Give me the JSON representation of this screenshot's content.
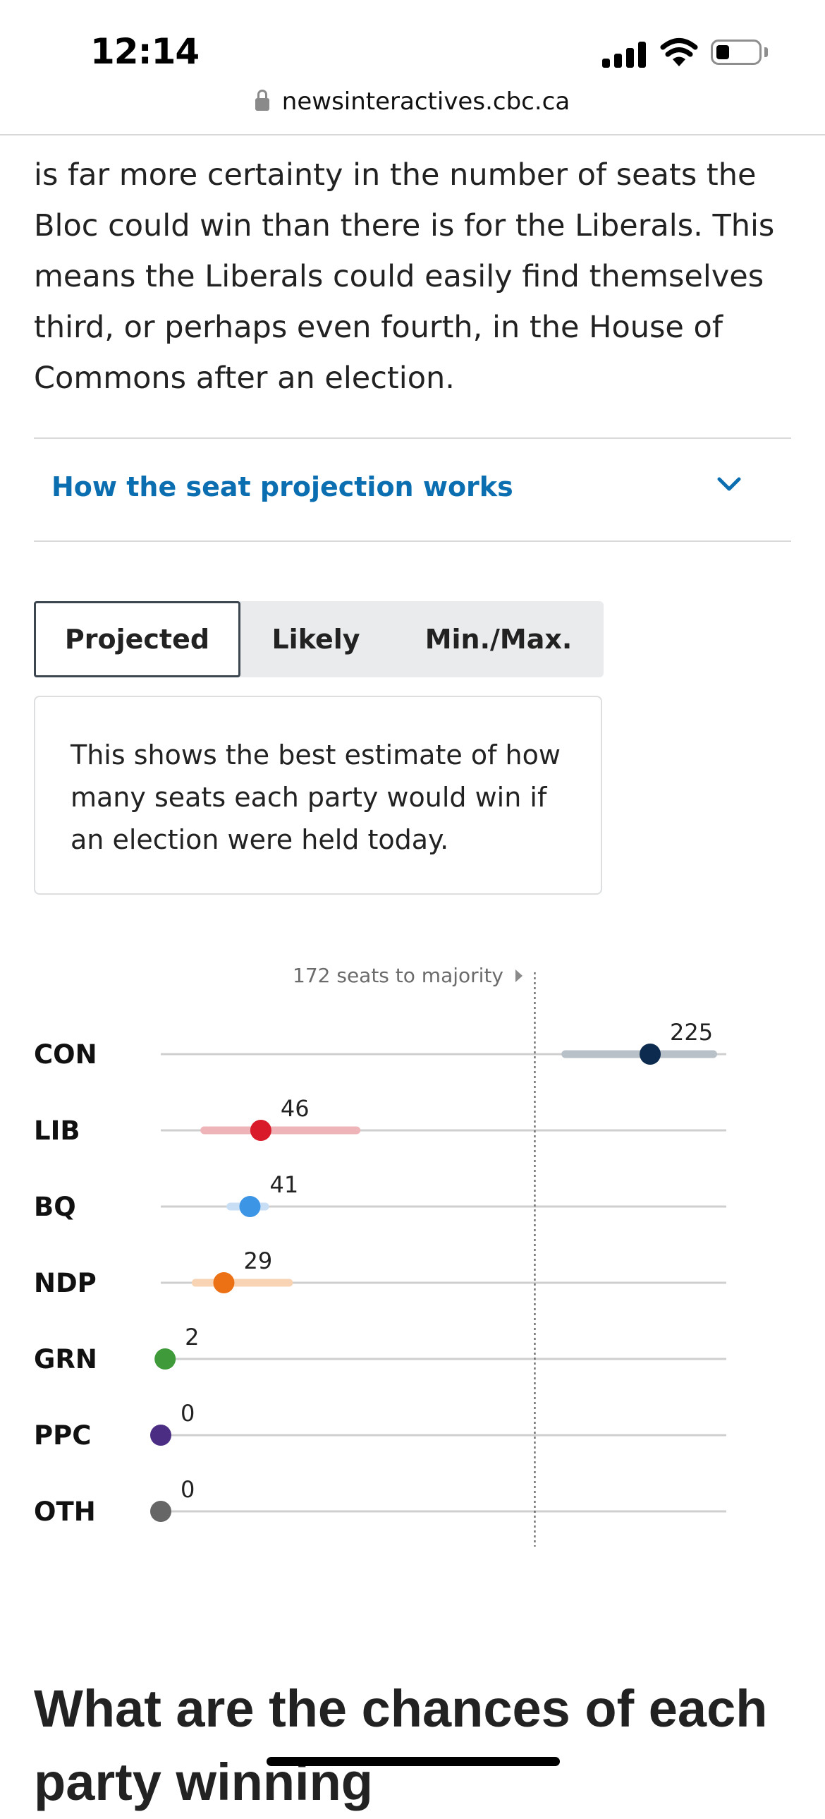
{
  "status_bar": {
    "time": "12:14",
    "url": "newsinteractives.cbc.ca"
  },
  "article": {
    "paragraph": "is far more certainty in the number of seats the Bloc could win than there is for the Liberals. This means the Liberals could easily find themselves third, or perhaps even fourth, in the House of Commons after an election.",
    "accordion_title": "How the seat projection works",
    "tabs": [
      {
        "label": "Projected",
        "active": true
      },
      {
        "label": "Likely",
        "active": false
      },
      {
        "label": "Min./Max.",
        "active": false
      }
    ],
    "tab_description": "This shows the best estimate of how many seats each party would win if an election were held today.",
    "next_heading": "What are the chances of each party winning"
  },
  "chart_data": {
    "type": "scatter",
    "majority_label": "172 seats to majority",
    "majority_value": 172,
    "xlim": [
      0,
      260
    ],
    "grid": false,
    "parties": [
      {
        "name": "CON",
        "value": 225,
        "range": [
          186,
          254
        ],
        "color": "#0d2b4e",
        "range_color": "#b8c0c8"
      },
      {
        "name": "LIB",
        "value": 46,
        "range": [
          20,
          90
        ],
        "color": "#d91a2a",
        "range_color": "#eeb4b8"
      },
      {
        "name": "BQ",
        "value": 41,
        "range": [
          32,
          48
        ],
        "color": "#3d95e6",
        "range_color": "#c7def5"
      },
      {
        "name": "NDP",
        "value": 29,
        "range": [
          16,
          59
        ],
        "color": "#ec7014",
        "range_color": "#f9d4b4"
      },
      {
        "name": "GRN",
        "value": 2,
        "range": [
          1,
          3
        ],
        "color": "#3f9a3a",
        "range_color": "#c3e1c1"
      },
      {
        "name": "PPC",
        "value": 0,
        "range": [
          0,
          1
        ],
        "color": "#4b2e83",
        "range_color": "#d0c5e0"
      },
      {
        "name": "OTH",
        "value": 0,
        "range": [
          0,
          1
        ],
        "color": "#666666",
        "range_color": "#d4d4d4"
      }
    ]
  }
}
